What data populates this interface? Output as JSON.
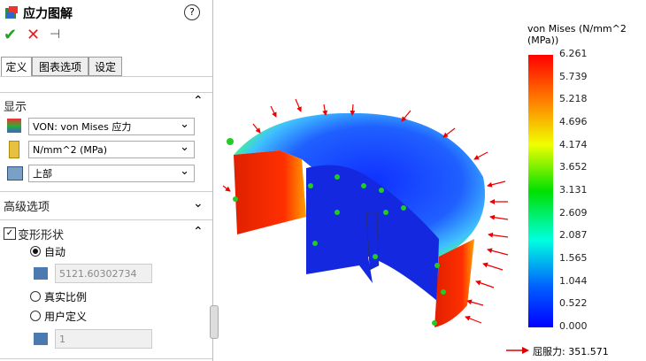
{
  "panel": {
    "title": "应力图解",
    "help": "?",
    "tabs": [
      "定义",
      "图表选项",
      "设定"
    ],
    "display": {
      "heading": "显示",
      "component": "VON: von Mises 应力",
      "units": "N/mm^2 (MPa)",
      "position": "上部"
    },
    "advanced": "高级选项",
    "deform": {
      "heading": "变形形状",
      "auto": "自动",
      "auto_value": "5121.60302734",
      "true_scale": "真实比例",
      "user_defined": "用户定义",
      "user_value": "1"
    }
  },
  "legend": {
    "title": "von Mises (N/mm^2 (MPa))",
    "labels": [
      "6.261",
      "5.739",
      "5.218",
      "4.696",
      "4.174",
      "3.652",
      "3.131",
      "2.609",
      "2.087",
      "1.565",
      "1.044",
      "0.522",
      "0.000"
    ],
    "yield": "屈服力: 351.571"
  }
}
